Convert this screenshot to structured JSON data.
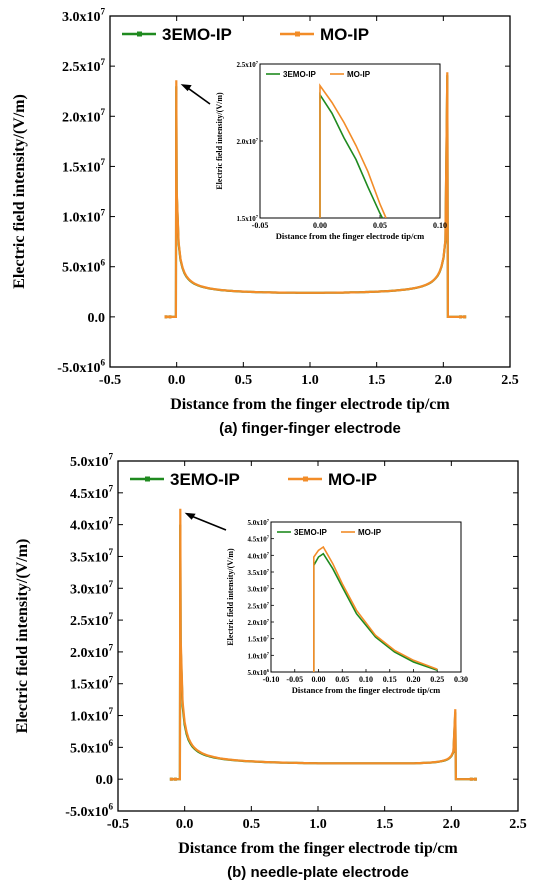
{
  "colors": {
    "green": "#1f8a1f",
    "orange": "#f28c28"
  },
  "chart_data": [
    {
      "type": "line",
      "caption": "(a) finger-finger electrode",
      "xlabel": "Distance from the finger electrode tip/cm",
      "ylabel": "Electric field intensity/(V/m)",
      "xlim": [
        -0.5,
        2.5
      ],
      "ylim": [
        -5000000,
        30000000
      ],
      "x_ticks": [
        "-0.5",
        "0.0",
        "0.5",
        "1.0",
        "1.5",
        "2.0",
        "2.5"
      ],
      "y_ticks": [
        {
          "m": "-5.0x10",
          "e": "6"
        },
        {
          "m": "0.0",
          "e": ""
        },
        {
          "m": "5.0x10",
          "e": "6"
        },
        {
          "m": "1.0x10",
          "e": "7"
        },
        {
          "m": "1.5x10",
          "e": "7"
        },
        {
          "m": "2.0x10",
          "e": "7"
        },
        {
          "m": "2.5x10",
          "e": "7"
        },
        {
          "m": "3.0x10",
          "e": "7"
        }
      ],
      "series": [
        {
          "name": "3EMO-IP",
          "color": "green",
          "peak_left": 23000000,
          "peak_right": 24100000
        },
        {
          "name": "MO-IP",
          "color": "orange",
          "peak_left": 23600000,
          "peak_right": 24400000
        }
      ],
      "curve": {
        "x_start": -0.08,
        "x_left_edge": 0.0,
        "x_right_edge": 2.03,
        "x_end": 2.16,
        "min_value": 2400000
      },
      "inset": {
        "xlabel": "Distance from the finger electrode tip/cm",
        "ylabel": "Electric field intensity/(V/m)",
        "xlim": [
          -0.05,
          0.1
        ],
        "ylim": [
          15000000,
          25000000
        ],
        "x_ticks": [
          "-0.05",
          "0.00",
          "0.05",
          "0.10"
        ],
        "y_ticks": [
          {
            "m": "1.5x10",
            "e": "7"
          },
          {
            "m": "2.0x10",
            "e": "7"
          },
          {
            "m": "2.5x10",
            "e": "7"
          }
        ],
        "series": [
          {
            "name": "3EMO-IP",
            "color": "green",
            "x": [
              0.0,
              0.0,
              0.01,
              0.02,
              0.03,
              0.04,
              0.05,
              0.052
            ],
            "y": [
              15000000,
              23000000,
              21800000,
              20200000,
              18800000,
              17000000,
              15300000,
              15000000
            ]
          },
          {
            "name": "MO-IP",
            "color": "orange",
            "x": [
              0.0,
              0.0,
              0.01,
              0.02,
              0.03,
              0.04,
              0.05,
              0.055
            ],
            "y": [
              15000000,
              23600000,
              22500000,
              21200000,
              19700000,
              18000000,
              15900000,
              15000000
            ]
          }
        ]
      }
    },
    {
      "type": "line",
      "caption": "(b) needle-plate electrode",
      "xlabel": "Distance from the finger electrode tip/cm",
      "ylabel": "Electric field intensity/(V/m)",
      "xlim": [
        -0.5,
        2.5
      ],
      "ylim": [
        -5000000,
        50000000
      ],
      "x_ticks": [
        "-0.5",
        "0.0",
        "0.5",
        "1.0",
        "1.5",
        "2.0",
        "2.5"
      ],
      "y_ticks": [
        {
          "m": "-5.0x10",
          "e": "6"
        },
        {
          "m": "0.0",
          "e": ""
        },
        {
          "m": "5.0x10",
          "e": "6"
        },
        {
          "m": "1.0x10",
          "e": "7"
        },
        {
          "m": "1.5x10",
          "e": "7"
        },
        {
          "m": "2.0x10",
          "e": "7"
        },
        {
          "m": "2.5x10",
          "e": "7"
        },
        {
          "m": "3.0x10",
          "e": "7"
        },
        {
          "m": "3.5x10",
          "e": "7"
        },
        {
          "m": "4.0x10",
          "e": "7"
        },
        {
          "m": "4.5x10",
          "e": "7"
        },
        {
          "m": "5.0x10",
          "e": "7"
        }
      ],
      "series": [
        {
          "name": "3EMO-IP",
          "color": "green",
          "peak_left": 40000000,
          "peak_right": 10500000
        },
        {
          "name": "MO-IP",
          "color": "orange",
          "peak_left": 42500000,
          "peak_right": 11000000
        }
      ],
      "curve": {
        "x_start": -0.1,
        "x_left_edge": -0.03,
        "x_right_edge": 2.03,
        "x_end": 2.18,
        "min_value": 2500000
      },
      "inset": {
        "xlabel": "Distance from the finger electrode tip/cm",
        "ylabel": "Electric field intensity/(V/m)",
        "xlim": [
          -0.1,
          0.3
        ],
        "ylim": [
          5000000,
          50000000
        ],
        "x_ticks": [
          "-0.10",
          "-0.05",
          "0.00",
          "0.05",
          "0.10",
          "0.15",
          "0.20",
          "0.25",
          "0.30"
        ],
        "y_ticks": [
          {
            "m": "5.0x10",
            "e": "6"
          },
          {
            "m": "1.0x10",
            "e": "7"
          },
          {
            "m": "1.5x10",
            "e": "7"
          },
          {
            "m": "2.0x10",
            "e": "7"
          },
          {
            "m": "2.5x10",
            "e": "7"
          },
          {
            "m": "3.0x10",
            "e": "7"
          },
          {
            "m": "3.5x10",
            "e": "7"
          },
          {
            "m": "4.0x10",
            "e": "7"
          },
          {
            "m": "4.5x10",
            "e": "7"
          },
          {
            "m": "5.0x10",
            "e": "7"
          }
        ],
        "series": [
          {
            "name": "3EMO-IP",
            "color": "green",
            "x": [
              -0.01,
              -0.01,
              0.0,
              0.01,
              0.03,
              0.05,
              0.08,
              0.12,
              0.16,
              0.2,
              0.25
            ],
            "y": [
              5000000,
              37000000,
              39500000,
              40500000,
              36000000,
              30500000,
              22500000,
              15500000,
              11000000,
              8000000,
              5500000
            ]
          },
          {
            "name": "MO-IP",
            "color": "orange",
            "x": [
              -0.01,
              -0.01,
              0.0,
              0.01,
              0.03,
              0.05,
              0.08,
              0.12,
              0.16,
              0.2,
              0.25
            ],
            "y": [
              5000000,
              39500000,
              41500000,
              42500000,
              37500000,
              31500000,
              23500000,
              16000000,
              11500000,
              8500000,
              5800000
            ]
          }
        ]
      }
    }
  ]
}
